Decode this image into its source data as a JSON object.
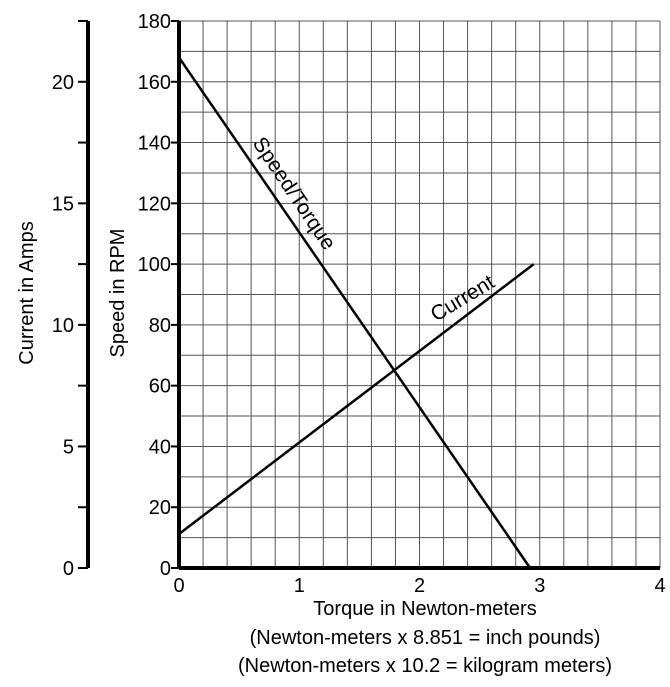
{
  "chart_data": {
    "type": "line",
    "xlabel": "Torque in Newton-meters",
    "x_notes": [
      "(Newton-meters x 8.851 = inch pounds)",
      "(Newton-meters x 10.2 = kilogram meters)"
    ],
    "ylabel_left": "Speed in RPM",
    "ylabel_current": "Current in Amps",
    "xlim": [
      0,
      4
    ],
    "ylim": [
      0,
      180
    ],
    "y2lim": [
      0,
      22.5
    ],
    "x_ticks": [
      0,
      1,
      2,
      3,
      4
    ],
    "y_ticks": [
      0,
      20,
      40,
      60,
      80,
      100,
      120,
      140,
      160,
      180
    ],
    "y2_ticks": [
      0,
      5,
      10,
      15,
      20
    ],
    "grid": true,
    "series": [
      {
        "name": "Speed/Torque",
        "axis": "speed",
        "x": [
          0,
          2.92
        ],
        "y": [
          168,
          0
        ]
      },
      {
        "name": "Current",
        "axis": "current",
        "x": [
          0,
          2.95
        ],
        "y": [
          1.4,
          12.5
        ]
      }
    ]
  }
}
